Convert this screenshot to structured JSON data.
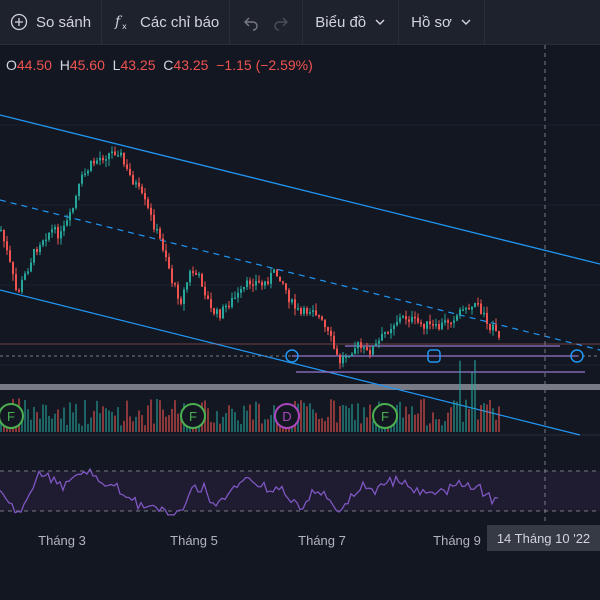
{
  "toolbar": {
    "compare_label": "So sánh",
    "indicators_label": "Các chỉ báo",
    "chart_type_label": "Biểu đồ",
    "profile_label": "Hồ sơ",
    "icons": [
      "plus-circle-icon",
      "fx-icon",
      "undo-icon",
      "redo-icon",
      "chevron-down-icon"
    ]
  },
  "ohlc": {
    "o_key": "O",
    "o_val": "44.50",
    "h_key": "H",
    "h_val": "45.60",
    "l_key": "L",
    "l_val": "43.25",
    "c_key": "C",
    "c_val": "43.25",
    "change": "−1.15 (−2.59%)"
  },
  "colors": {
    "up": "#26a69a",
    "down": "#ef5350",
    "channel": "#2196f3",
    "rsi": "#7e57c2",
    "background": "#131722",
    "panel": "#1e222d",
    "horizontal_lines": "#9575cd"
  },
  "markers": [
    {
      "letter": "F",
      "type": "earnings"
    },
    {
      "letter": "F",
      "type": "earnings"
    },
    {
      "letter": "D",
      "type": "dividend"
    },
    {
      "letter": "F",
      "type": "earnings"
    }
  ],
  "x_axis": {
    "labels": [
      "Tháng 3",
      "Tháng 5",
      "Tháng 7",
      "Tháng 9"
    ],
    "cursor_label": "14 Tháng 10 '22"
  }
}
